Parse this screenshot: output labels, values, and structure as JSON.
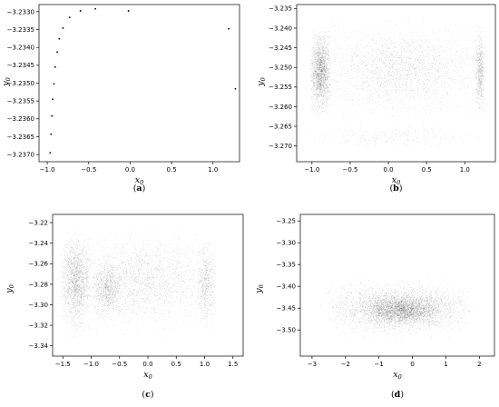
{
  "chart_data": [
    {
      "type": "scatter",
      "caption": "(a)",
      "xlabel": "x",
      "xlabel_sub": "0",
      "ylabel": "y",
      "ylabel_sub": "0",
      "xlim": [
        -1.1,
        1.32
      ],
      "ylim": [
        -3.2372,
        -3.2328
      ],
      "xticks": [
        -1.0,
        -0.5,
        0.0,
        0.5,
        1.0
      ],
      "xtick_labels": [
        "−1.0",
        "−0.5",
        "0.0",
        "0.5",
        "1.0"
      ],
      "yticks": [
        -3.233,
        -3.2335,
        -3.234,
        -3.2345,
        -3.235,
        -3.2355,
        -3.236,
        -3.2365,
        -3.237
      ],
      "ytick_labels": [
        "−3.2330",
        "−3.2335",
        "−3.2340",
        "−3.2345",
        "−3.2350",
        "−3.2355",
        "−3.2360",
        "−3.2365",
        "−3.2370"
      ],
      "points": [
        [
          -0.965,
          -3.23695
        ],
        [
          -0.955,
          -3.23643
        ],
        [
          -0.945,
          -3.23592
        ],
        [
          -0.935,
          -3.23545
        ],
        [
          -0.92,
          -3.23502
        ],
        [
          -0.905,
          -3.23455
        ],
        [
          -0.88,
          -3.23413
        ],
        [
          -0.855,
          -3.23376
        ],
        [
          -0.81,
          -3.23346
        ],
        [
          -0.73,
          -3.23316
        ],
        [
          -0.6,
          -3.23298
        ],
        [
          -0.42,
          -3.23292
        ],
        [
          -0.02,
          -3.23298
        ],
        [
          1.19,
          -3.23348
        ],
        [
          1.27,
          -3.23516
        ]
      ],
      "style": {
        "mode": "points",
        "color": "#000000"
      }
    },
    {
      "type": "scatter",
      "caption": "(b)",
      "xlabel": "x",
      "xlabel_sub": "0",
      "ylabel": "y",
      "ylabel_sub": "0",
      "xlim": [
        -1.2,
        1.4
      ],
      "ylim": [
        -3.274,
        -3.234
      ],
      "xticks": [
        -1.0,
        -0.5,
        0.0,
        0.5,
        1.0
      ],
      "xtick_labels": [
        "−1.0",
        "−0.5",
        "0.0",
        "0.5",
        "1.0"
      ],
      "yticks": [
        -3.235,
        -3.24,
        -3.245,
        -3.25,
        -3.255,
        -3.26,
        -3.265,
        -3.27
      ],
      "ytick_labels": [
        "−3.235",
        "−3.240",
        "−3.245",
        "−3.250",
        "−3.255",
        "−3.260",
        "−3.265",
        "−3.270"
      ],
      "density_regions": [
        {
          "x": [
            -1.02,
            1.27
          ],
          "y": [
            -3.265,
            -3.236
          ],
          "count": 2600
        },
        {
          "x": [
            -1.03,
            -0.75
          ],
          "y": [
            -3.264,
            -3.238
          ],
          "count": 2200
        },
        {
          "x": [
            1.13,
            1.27
          ],
          "y": [
            -3.264,
            -3.238
          ],
          "count": 700
        },
        {
          "x": [
            -1.06,
            1.25
          ],
          "y": [
            -3.271,
            -3.264
          ],
          "count": 300
        }
      ],
      "style": {
        "mode": "density",
        "color": "#000000"
      }
    },
    {
      "type": "scatter",
      "caption": "(c)",
      "xlabel": "x",
      "xlabel_sub": "0",
      "ylabel": "y",
      "ylabel_sub": "0",
      "xlim": [
        -1.68,
        1.68
      ],
      "ylim": [
        -3.35,
        -3.212
      ],
      "xticks": [
        -1.5,
        -1.0,
        -0.5,
        0.0,
        0.5,
        1.0,
        1.5
      ],
      "xtick_labels": [
        "−1.5",
        "−1.0",
        "−0.5",
        "0.0",
        "0.5",
        "1.0",
        "1.5"
      ],
      "yticks": [
        -3.22,
        -3.24,
        -3.26,
        -3.28,
        -3.3,
        -3.32,
        -3.34
      ],
      "ytick_labels": [
        "−3.22",
        "−3.24",
        "−3.26",
        "−3.28",
        "−3.30",
        "−3.32",
        "−3.34"
      ],
      "density_regions": [
        {
          "x": [
            -1.55,
            1.25
          ],
          "y": [
            -3.335,
            -3.218
          ],
          "count": 2600
        },
        {
          "x": [
            -1.55,
            -1.0
          ],
          "y": [
            -3.335,
            -3.218
          ],
          "count": 1900
        },
        {
          "x": [
            -1.0,
            -0.45
          ],
          "y": [
            -3.32,
            -3.25
          ],
          "count": 900
        },
        {
          "x": [
            0.85,
            1.2
          ],
          "y": [
            -3.33,
            -3.23
          ],
          "count": 700
        }
      ],
      "style": {
        "mode": "density",
        "color": "#000000"
      }
    },
    {
      "type": "scatter",
      "caption": "(d)",
      "xlabel": "x",
      "xlabel_sub": "0",
      "ylabel": "y",
      "ylabel_sub": "0",
      "xlim": [
        -3.35,
        2.45
      ],
      "ylim": [
        -3.56,
        -3.235
      ],
      "xticks": [
        -3,
        -2,
        -1,
        0,
        1,
        2
      ],
      "xtick_labels": [
        "−3",
        "−2",
        "−1",
        "0",
        "1",
        "2"
      ],
      "yticks": [
        -3.25,
        -3.3,
        -3.35,
        -3.4,
        -3.45,
        -3.5
      ],
      "ytick_labels": [
        "−3.25",
        "−3.30",
        "−3.35",
        "−3.40",
        "−3.45",
        "−3.50"
      ],
      "density_regions": [
        {
          "x": [
            -2.6,
            1.8
          ],
          "y": [
            -3.52,
            -3.38
          ],
          "count": 3200
        },
        {
          "x": [
            -1.5,
            0.9
          ],
          "y": [
            -3.5,
            -3.41
          ],
          "count": 2400
        },
        {
          "x": [
            -3.0,
            2.0
          ],
          "y": [
            -3.54,
            -3.36
          ],
          "count": 600
        }
      ],
      "style": {
        "mode": "density",
        "color": "#000000"
      }
    }
  ]
}
